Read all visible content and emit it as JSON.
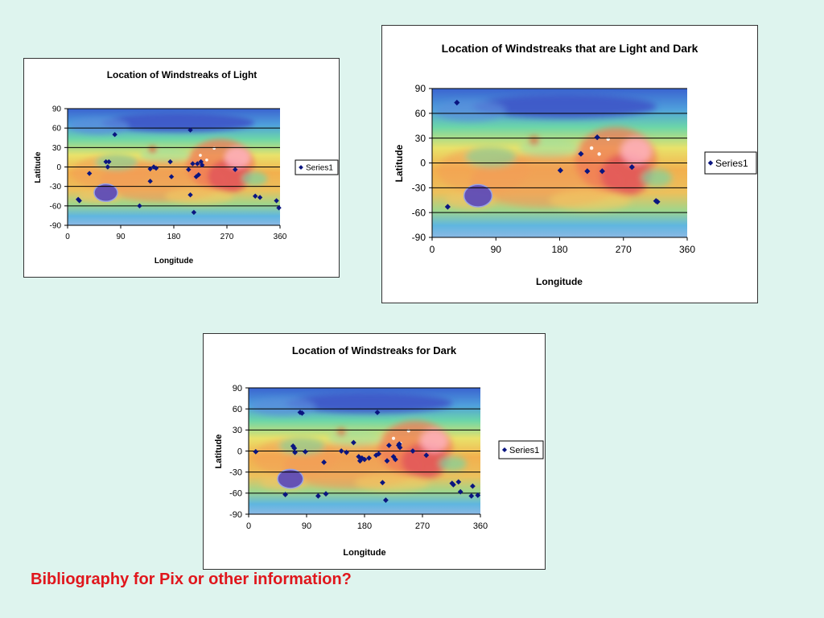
{
  "colors": {
    "background": "#def4ee",
    "marker": "#0a1580",
    "note": "#e0161c"
  },
  "footer_note": "Bibliography for Pix or other information?",
  "chart_data": [
    {
      "id": "light",
      "type": "scatter",
      "background_image": "mars-topography-map",
      "title": "Location of Windstreaks of Light",
      "xlabel": "Longitude",
      "ylabel": "Latitude",
      "xlim": [
        0,
        360
      ],
      "ylim": [
        -90,
        90
      ],
      "xticks": [
        0,
        90,
        180,
        270,
        360
      ],
      "yticks": [
        90,
        60,
        30,
        0,
        -30,
        -60,
        -90
      ],
      "grid": "horizontal",
      "legend": "right",
      "series": [
        {
          "name": "Series1",
          "points": [
            [
              18,
              -50
            ],
            [
              20,
              -52
            ],
            [
              37,
              -10
            ],
            [
              65,
              8
            ],
            [
              70,
              8
            ],
            [
              68,
              0
            ],
            [
              80,
              50
            ],
            [
              122,
              -60
            ],
            [
              140,
              -3
            ],
            [
              140,
              -22
            ],
            [
              146,
              0
            ],
            [
              150,
              -2
            ],
            [
              174,
              8
            ],
            [
              176,
              -15
            ],
            [
              208,
              57
            ],
            [
              205,
              -4
            ],
            [
              208,
              -43
            ],
            [
              212,
              5
            ],
            [
              214,
              -70
            ],
            [
              218,
              -15
            ],
            [
              222,
              -12
            ],
            [
              220,
              5
            ],
            [
              226,
              8
            ],
            [
              228,
              3
            ],
            [
              284,
              -4
            ],
            [
              318,
              -45
            ],
            [
              326,
              -47
            ],
            [
              354,
              -52
            ],
            [
              358,
              -63
            ]
          ]
        }
      ]
    },
    {
      "id": "both",
      "type": "scatter",
      "background_image": "mars-topography-map",
      "title": "Location of Windstreaks that are Light and Dark",
      "xlabel": "Longitude",
      "ylabel": "Latitude",
      "xlim": [
        0,
        360
      ],
      "ylim": [
        -90,
        90
      ],
      "xticks": [
        0,
        90,
        180,
        270,
        360
      ],
      "yticks": [
        90,
        60,
        30,
        0,
        -30,
        -60,
        -90
      ],
      "grid": "horizontal",
      "legend": "right",
      "series": [
        {
          "name": "Series1",
          "points": [
            [
              22,
              -53
            ],
            [
              35,
              73
            ],
            [
              181,
              -9
            ],
            [
              210,
              11
            ],
            [
              219,
              -10
            ],
            [
              233,
              31
            ],
            [
              240,
              -10
            ],
            [
              282,
              -5
            ],
            [
              316,
              -46
            ],
            [
              318,
              -47
            ]
          ]
        }
      ]
    },
    {
      "id": "dark",
      "type": "scatter",
      "background_image": "mars-topography-map",
      "title": "Location of Windstreaks for Dark",
      "xlabel": "Longitude",
      "ylabel": "Latitude",
      "xlim": [
        0,
        360
      ],
      "ylim": [
        -90,
        90
      ],
      "xticks": [
        0,
        90,
        180,
        270,
        360
      ],
      "yticks": [
        90,
        60,
        30,
        0,
        -30,
        -60,
        -90
      ],
      "grid": "horizontal",
      "legend": "right",
      "series": [
        {
          "name": "Series1",
          "points": [
            [
              11,
              -1
            ],
            [
              57,
              -62
            ],
            [
              69,
              7
            ],
            [
              71,
              4
            ],
            [
              72,
              -2
            ],
            [
              80,
              55
            ],
            [
              83,
              54
            ],
            [
              88,
              -1
            ],
            [
              108,
              -64
            ],
            [
              117,
              -16
            ],
            [
              120,
              -61
            ],
            [
              144,
              0
            ],
            [
              152,
              -2
            ],
            [
              163,
              12
            ],
            [
              171,
              -8
            ],
            [
              173,
              -14
            ],
            [
              176,
              -10
            ],
            [
              180,
              -12
            ],
            [
              187,
              -10
            ],
            [
              198,
              -6
            ],
            [
              200,
              55
            ],
            [
              202,
              -4
            ],
            [
              208,
              -45
            ],
            [
              213,
              -70
            ],
            [
              215,
              -14
            ],
            [
              218,
              8
            ],
            [
              225,
              -8
            ],
            [
              228,
              -12
            ],
            [
              233,
              8
            ],
            [
              234,
              10
            ],
            [
              235,
              5
            ],
            [
              255,
              0
            ],
            [
              276,
              -6
            ],
            [
              316,
              -46
            ],
            [
              318,
              -48
            ],
            [
              326,
              -44
            ],
            [
              329,
              -58
            ],
            [
              346,
              -64
            ],
            [
              348,
              -50
            ],
            [
              356,
              -63
            ]
          ]
        }
      ]
    }
  ]
}
